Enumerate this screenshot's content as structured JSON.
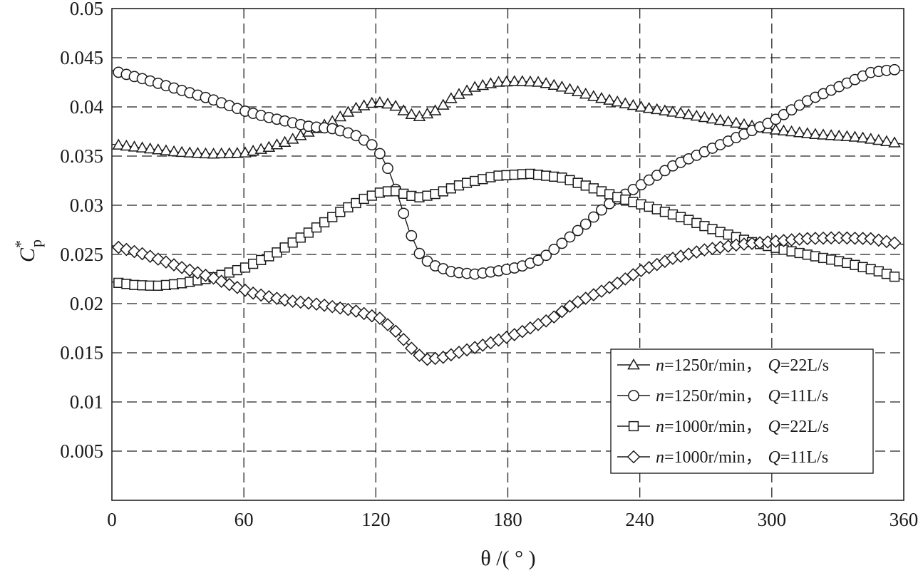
{
  "chart_data": {
    "type": "line",
    "xlabel": "θ /( ° )",
    "ylabel": "C*p",
    "xlim": [
      0,
      360
    ],
    "ylim": [
      0,
      0.05
    ],
    "xticks": [
      "0",
      "60",
      "120",
      "180",
      "240",
      "300",
      "360"
    ],
    "yticks": [
      "0.005",
      "0.01",
      "0.015",
      "0.02",
      "0.025",
      "0.03",
      "0.035",
      "0.04",
      "0.045",
      "0.05"
    ],
    "grid": true,
    "legend_position": "bottom-right",
    "series": [
      {
        "name": "n=1250r/min, Q=22L/s",
        "n_label": "n",
        "n_value": "=1250r/min，",
        "q_label": "Q",
        "q_value": "=22L/s",
        "marker": "triangle",
        "points": [
          [
            0,
            0.0362
          ],
          [
            15,
            0.0358
          ],
          [
            30,
            0.0354
          ],
          [
            45,
            0.0352
          ],
          [
            60,
            0.0353
          ],
          [
            70,
            0.0358
          ],
          [
            80,
            0.0365
          ],
          [
            90,
            0.0375
          ],
          [
            100,
            0.0385
          ],
          [
            110,
            0.0398
          ],
          [
            120,
            0.0405
          ],
          [
            128,
            0.0402
          ],
          [
            135,
            0.0393
          ],
          [
            140,
            0.039
          ],
          [
            148,
            0.0397
          ],
          [
            155,
            0.041
          ],
          [
            165,
            0.042
          ],
          [
            175,
            0.0425
          ],
          [
            185,
            0.0426
          ],
          [
            195,
            0.0425
          ],
          [
            205,
            0.042
          ],
          [
            220,
            0.041
          ],
          [
            240,
            0.04
          ],
          [
            260,
            0.0393
          ],
          [
            280,
            0.0385
          ],
          [
            300,
            0.0377
          ],
          [
            320,
            0.0372
          ],
          [
            340,
            0.0369
          ],
          [
            360,
            0.0362
          ]
        ]
      },
      {
        "name": "n=1250r/min, Q=11L/s",
        "n_label": "n",
        "n_value": "=1250r/min，",
        "q_label": "Q",
        "q_value": "=11L/s",
        "marker": "circle",
        "points": [
          [
            0,
            0.0437
          ],
          [
            15,
            0.0428
          ],
          [
            30,
            0.0418
          ],
          [
            45,
            0.0408
          ],
          [
            55,
            0.04
          ],
          [
            60,
            0.0396
          ],
          [
            70,
            0.039
          ],
          [
            80,
            0.0385
          ],
          [
            90,
            0.038
          ],
          [
            100,
            0.0378
          ],
          [
            110,
            0.0372
          ],
          [
            118,
            0.0362
          ],
          [
            122,
            0.0352
          ],
          [
            126,
            0.0335
          ],
          [
            130,
            0.031
          ],
          [
            135,
            0.0275
          ],
          [
            140,
            0.025
          ],
          [
            145,
            0.024
          ],
          [
            155,
            0.0232
          ],
          [
            165,
            0.023
          ],
          [
            175,
            0.0233
          ],
          [
            185,
            0.0237
          ],
          [
            195,
            0.0245
          ],
          [
            205,
            0.0262
          ],
          [
            215,
            0.028
          ],
          [
            225,
            0.03
          ],
          [
            240,
            0.032
          ],
          [
            255,
            0.034
          ],
          [
            270,
            0.0355
          ],
          [
            285,
            0.037
          ],
          [
            300,
            0.0385
          ],
          [
            315,
            0.0405
          ],
          [
            330,
            0.042
          ],
          [
            345,
            0.0435
          ],
          [
            355,
            0.0438
          ],
          [
            360,
            0.0437
          ]
        ]
      },
      {
        "name": "n=1000r/min, Q=22L/s",
        "n_label": "n",
        "n_value": "=1000r/min，",
        "q_label": "Q",
        "q_value": "=22L/s",
        "marker": "square",
        "points": [
          [
            0,
            0.0222
          ],
          [
            10,
            0.0219
          ],
          [
            20,
            0.0218
          ],
          [
            30,
            0.022
          ],
          [
            45,
            0.0226
          ],
          [
            60,
            0.0236
          ],
          [
            75,
            0.0252
          ],
          [
            90,
            0.0273
          ],
          [
            105,
            0.0295
          ],
          [
            115,
            0.0307
          ],
          [
            122,
            0.0313
          ],
          [
            128,
            0.0315
          ],
          [
            135,
            0.031
          ],
          [
            140,
            0.0308
          ],
          [
            148,
            0.0312
          ],
          [
            160,
            0.0322
          ],
          [
            175,
            0.033
          ],
          [
            190,
            0.0332
          ],
          [
            205,
            0.0328
          ],
          [
            218,
            0.0318
          ],
          [
            230,
            0.0308
          ],
          [
            245,
            0.0298
          ],
          [
            260,
            0.0287
          ],
          [
            275,
            0.0274
          ],
          [
            290,
            0.0263
          ],
          [
            305,
            0.0255
          ],
          [
            320,
            0.0248
          ],
          [
            335,
            0.0241
          ],
          [
            350,
            0.0232
          ],
          [
            360,
            0.0224
          ]
        ]
      },
      {
        "name": "n=1000r/min, Q=11L/s",
        "n_label": "n",
        "n_value": "=1000r/min，",
        "q_label": "Q",
        "q_value": "=11L/s",
        "marker": "diamond",
        "points": [
          [
            0,
            0.0259
          ],
          [
            15,
            0.025
          ],
          [
            30,
            0.0238
          ],
          [
            45,
            0.0227
          ],
          [
            55,
            0.0218
          ],
          [
            65,
            0.021
          ],
          [
            80,
            0.0203
          ],
          [
            95,
            0.0199
          ],
          [
            110,
            0.0193
          ],
          [
            122,
            0.0185
          ],
          [
            130,
            0.017
          ],
          [
            136,
            0.0155
          ],
          [
            142,
            0.0143
          ],
          [
            150,
            0.0145
          ],
          [
            160,
            0.0152
          ],
          [
            172,
            0.016
          ],
          [
            185,
            0.017
          ],
          [
            200,
            0.0185
          ],
          [
            210,
            0.02
          ],
          [
            225,
            0.0215
          ],
          [
            240,
            0.0233
          ],
          [
            255,
            0.0246
          ],
          [
            270,
            0.0255
          ],
          [
            285,
            0.026
          ],
          [
            300,
            0.0263
          ],
          [
            315,
            0.0266
          ],
          [
            330,
            0.0267
          ],
          [
            345,
            0.0266
          ],
          [
            360,
            0.026
          ]
        ]
      }
    ]
  }
}
